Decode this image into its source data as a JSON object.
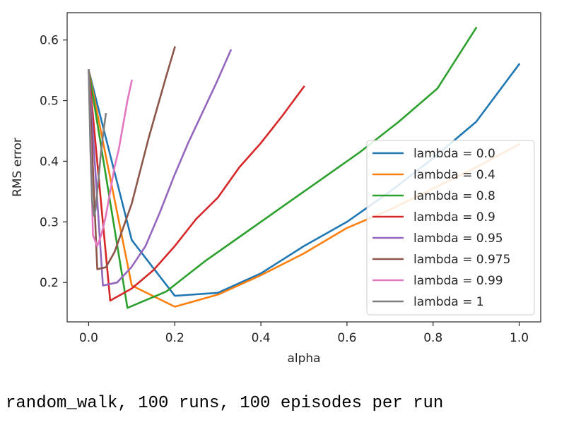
{
  "chart_data": {
    "type": "line",
    "xlabel": "alpha",
    "ylabel": "RMS error",
    "xlim": [
      -0.05,
      1.05
    ],
    "ylim": [
      0.135,
      0.645
    ],
    "xticks": [
      0.0,
      0.2,
      0.4,
      0.6,
      0.8,
      1.0
    ],
    "xtick_labels": [
      "0.0",
      "0.2",
      "0.4",
      "0.6",
      "0.8",
      "1.0"
    ],
    "yticks": [
      0.2,
      0.3,
      0.4,
      0.5,
      0.6
    ],
    "ytick_labels": [
      "0.2",
      "0.3",
      "0.4",
      "0.5",
      "0.6"
    ],
    "grid": false,
    "legend_position": "lower-right",
    "series": [
      {
        "name": "lambda = 0.0",
        "color": "#1f77b4",
        "x": [
          0.0,
          0.1,
          0.2,
          0.3,
          0.4,
          0.5,
          0.6,
          0.7,
          0.8,
          0.9,
          1.0
        ],
        "y": [
          0.55,
          0.27,
          0.178,
          0.183,
          0.215,
          0.26,
          0.3,
          0.35,
          0.405,
          0.465,
          0.56
        ]
      },
      {
        "name": "lambda = 0.4",
        "color": "#ff7f0e",
        "x": [
          0.0,
          0.1,
          0.2,
          0.3,
          0.4,
          0.5,
          0.6,
          0.7,
          0.8,
          0.9,
          1.0
        ],
        "y": [
          0.55,
          0.195,
          0.16,
          0.18,
          0.212,
          0.248,
          0.29,
          0.32,
          0.355,
          0.39,
          0.428
        ]
      },
      {
        "name": "lambda = 0.8",
        "color": "#2ca02c",
        "x": [
          0.0,
          0.09,
          0.18,
          0.27,
          0.36,
          0.45,
          0.54,
          0.63,
          0.72,
          0.81,
          0.9
        ],
        "y": [
          0.55,
          0.158,
          0.185,
          0.235,
          0.28,
          0.325,
          0.37,
          0.415,
          0.465,
          0.52,
          0.62
        ]
      },
      {
        "name": "lambda = 0.9",
        "color": "#d62728",
        "x": [
          0.0,
          0.05,
          0.1,
          0.15,
          0.2,
          0.25,
          0.3,
          0.35,
          0.4,
          0.45,
          0.5
        ],
        "y": [
          0.55,
          0.17,
          0.19,
          0.22,
          0.26,
          0.305,
          0.34,
          0.39,
          0.43,
          0.475,
          0.523
        ]
      },
      {
        "name": "lambda = 0.95",
        "color": "#9467bd",
        "x": [
          0.0,
          0.033,
          0.066,
          0.099,
          0.132,
          0.165,
          0.198,
          0.231,
          0.264,
          0.297,
          0.33
        ],
        "y": [
          0.55,
          0.195,
          0.2,
          0.225,
          0.26,
          0.315,
          0.375,
          0.43,
          0.48,
          0.53,
          0.583
        ]
      },
      {
        "name": "lambda = 0.975",
        "color": "#8c564b",
        "x": [
          0.0,
          0.02,
          0.04,
          0.06,
          0.08,
          0.1,
          0.12,
          0.14,
          0.16,
          0.18,
          0.2
        ],
        "y": [
          0.55,
          0.222,
          0.225,
          0.25,
          0.29,
          0.33,
          0.385,
          0.44,
          0.49,
          0.54,
          0.588
        ]
      },
      {
        "name": "lambda = 0.99",
        "color": "#e377c2",
        "x": [
          0.0,
          0.01,
          0.02,
          0.03,
          0.04,
          0.05,
          0.06,
          0.07,
          0.08,
          0.09,
          0.1
        ],
        "y": [
          0.55,
          0.278,
          0.26,
          0.28,
          0.31,
          0.35,
          0.39,
          0.42,
          0.46,
          0.5,
          0.533
        ]
      },
      {
        "name": "lambda = 1",
        "color": "#7f7f7f",
        "x": [
          0.0,
          0.004,
          0.008,
          0.012,
          0.016,
          0.02,
          0.024,
          0.028,
          0.032,
          0.036,
          0.04
        ],
        "y": [
          0.55,
          0.42,
          0.335,
          0.31,
          0.32,
          0.35,
          0.38,
          0.41,
          0.435,
          0.458,
          0.478
        ]
      }
    ]
  },
  "caption": "random_walk, 100 runs, 100 episodes per run"
}
